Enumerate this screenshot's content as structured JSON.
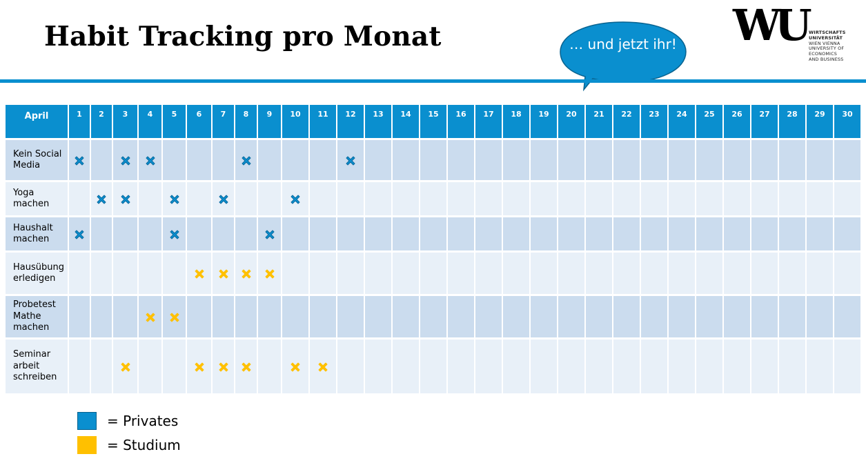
{
  "slide": {
    "title": "Habit Tracking pro Monat",
    "bubble_text": "… und jetzt ihr!"
  },
  "logo": {
    "mark": "WU",
    "lines": [
      "WIRTSCHAFTS",
      "UNIVERSITÄT",
      "WIEN VIENNA",
      "UNIVERSITY OF",
      "ECONOMICS",
      "AND BUSINESS"
    ]
  },
  "colors": {
    "accent": "#0a8fcf",
    "privates": "#0a8fcf",
    "studium": "#ffc000",
    "row_dark": "#cbdcee",
    "row_light": "#e8f0f8"
  },
  "table": {
    "header_label": "April",
    "days": [
      "1",
      "2",
      "3",
      "4",
      "5",
      "6",
      "7",
      "8",
      "9",
      "10",
      "11",
      "12",
      "13",
      "14",
      "15",
      "16",
      "17",
      "18",
      "19",
      "20",
      "21",
      "22",
      "23",
      "24",
      "25",
      "26",
      "27",
      "28",
      "29",
      "30"
    ],
    "rows": [
      {
        "label": "Kein Social Media",
        "category": "privates",
        "marked_days": [
          1,
          3,
          4,
          8,
          12
        ]
      },
      {
        "label": "Yoga machen",
        "category": "privates",
        "marked_days": [
          2,
          3,
          5,
          7,
          10
        ]
      },
      {
        "label": "Haushalt machen",
        "category": "privates",
        "marked_days": [
          1,
          5,
          9
        ]
      },
      {
        "label": "Hausübung erledigen",
        "category": "studium",
        "marked_days": [
          6,
          7,
          8,
          9
        ]
      },
      {
        "label": "Probetest Mathe machen",
        "category": "studium",
        "marked_days": [
          4,
          5
        ]
      },
      {
        "label": "Seminar arbeit schreiben",
        "category": "studium",
        "marked_days": [
          3,
          6,
          7,
          8,
          10,
          11
        ]
      }
    ]
  },
  "legend": [
    {
      "key": "privates",
      "label": "= Privates"
    },
    {
      "key": "studium",
      "label": "= Studium"
    }
  ]
}
